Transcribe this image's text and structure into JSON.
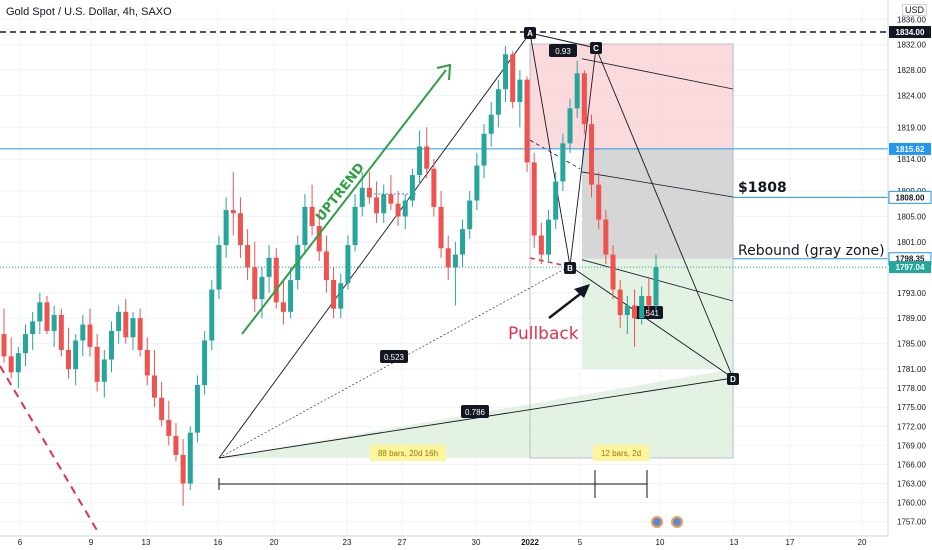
{
  "header": {
    "symbol_title": "Gold Spot / U.S. Dollar, 4h, SAXO",
    "currency": "USD"
  },
  "colors": {
    "up": "#26a69a",
    "down": "#ef5350",
    "hline": "#2196f3",
    "uptrend": "#2ea043",
    "pullback": "#e8304a",
    "gray_zone": "#c8c8c8",
    "red_zone": "#f8cdd2",
    "green_zone": "#d8ecd7"
  },
  "chart_data": {
    "type": "candlestick",
    "title": "Gold Spot / U.S. Dollar, 4h, SAXO",
    "y_axis_ticks": [
      "1757.00",
      "1760.00",
      "1763.00",
      "1766.00",
      "1769.00",
      "1772.00",
      "1775.00",
      "1778.00",
      "1781.00",
      "1785.00",
      "1789.00",
      "1793.00",
      "1797.00",
      "1801.00",
      "1805.00",
      "1809.00",
      "1814.00",
      "1819.00",
      "1824.00",
      "1828.00",
      "1832.00",
      "1836.00"
    ],
    "x_axis_ticks": [
      "6",
      "9",
      "13",
      "16",
      "20",
      "23",
      "27",
      "30",
      "2022",
      "5",
      "10",
      "13",
      "17",
      "20"
    ],
    "price_tags": [
      {
        "label": "1834.00",
        "style": "black"
      },
      {
        "label": "1815.62",
        "style": "blue"
      },
      {
        "label": "1808.00",
        "style": "blue-outline"
      },
      {
        "label": "1798.35",
        "style": "blue-outline"
      },
      {
        "label": "1797.04",
        "style": "green"
      }
    ],
    "horizontal_lines": [
      {
        "price": 1834.0,
        "style": "dashed-black"
      },
      {
        "price": 1815.62,
        "style": "solid-blue"
      },
      {
        "price": 1808.0,
        "style": "solid-blue"
      },
      {
        "price": 1798.35,
        "style": "solid-blue"
      },
      {
        "price": 1797.04,
        "style": "dotted-green"
      }
    ],
    "pattern_points": [
      {
        "label": "A",
        "date": "Jan 3",
        "price": 1831.8
      },
      {
        "label": "B",
        "date": "Jan 5",
        "price": 1797.5
      },
      {
        "label": "C",
        "date": "Jan 6",
        "price": 1829.5
      },
      {
        "label": "D",
        "date": "Jan 13",
        "price": 1781.0
      }
    ],
    "ratios": [
      "0.93",
      "0.523",
      "0.786",
      "1.541"
    ],
    "range_labels": [
      "88 bars, 20d 16h",
      "12 bars, 2d"
    ],
    "annotations": {
      "uptrend": "UPTREND",
      "pullback": "Pullback",
      "level": "$1808",
      "rebound": "Rebound (gray zone)"
    },
    "ohlc": [
      [
        1786.5,
        1790.5,
        1782.0,
        1783.0
      ],
      [
        1783.0,
        1786.0,
        1779.5,
        1780.5
      ],
      [
        1780.5,
        1784.5,
        1778.0,
        1783.5
      ],
      [
        1783.5,
        1788.0,
        1781.5,
        1786.5
      ],
      [
        1786.5,
        1790.0,
        1784.0,
        1788.5
      ],
      [
        1788.5,
        1793.0,
        1786.5,
        1791.5
      ],
      [
        1791.5,
        1792.5,
        1786.5,
        1787.0
      ],
      [
        1787.0,
        1791.0,
        1784.5,
        1789.5
      ],
      [
        1789.5,
        1790.5,
        1783.0,
        1784.0
      ],
      [
        1784.0,
        1787.5,
        1779.5,
        1781.0
      ],
      [
        1781.0,
        1786.5,
        1778.5,
        1785.5
      ],
      [
        1785.5,
        1789.5,
        1783.0,
        1788.0
      ],
      [
        1788.0,
        1790.5,
        1783.0,
        1784.5
      ],
      [
        1784.5,
        1786.5,
        1777.5,
        1779.0
      ],
      [
        1779.0,
        1784.0,
        1776.5,
        1782.5
      ],
      [
        1782.5,
        1788.5,
        1780.5,
        1787.0
      ],
      [
        1787.0,
        1791.0,
        1785.0,
        1790.0
      ],
      [
        1790.0,
        1792.0,
        1785.0,
        1786.0
      ],
      [
        1786.0,
        1790.0,
        1784.0,
        1789.0
      ],
      [
        1789.0,
        1790.5,
        1783.0,
        1784.0
      ],
      [
        1784.0,
        1786.0,
        1778.5,
        1780.0
      ],
      [
        1780.0,
        1784.0,
        1775.0,
        1776.5
      ],
      [
        1776.5,
        1779.0,
        1772.0,
        1773.0
      ],
      [
        1773.0,
        1776.0,
        1769.0,
        1770.5
      ],
      [
        1770.5,
        1772.5,
        1766.5,
        1767.5
      ],
      [
        1767.5,
        1770.0,
        1759.5,
        1763.0
      ],
      [
        1763.0,
        1772.0,
        1762.0,
        1771.0
      ],
      [
        1771.0,
        1780.0,
        1769.5,
        1778.5
      ],
      [
        1778.5,
        1787.0,
        1777.0,
        1785.5
      ],
      [
        1785.5,
        1795.0,
        1784.0,
        1793.5
      ],
      [
        1793.5,
        1802.0,
        1792.0,
        1800.5
      ],
      [
        1800.5,
        1808.0,
        1798.5,
        1806.0
      ],
      [
        1806.0,
        1812.0,
        1802.0,
        1805.5
      ],
      [
        1805.5,
        1808.0,
        1798.5,
        1800.5
      ],
      [
        1800.5,
        1803.0,
        1795.0,
        1797.0
      ],
      [
        1797.0,
        1801.0,
        1790.0,
        1792.0
      ],
      [
        1792.0,
        1797.0,
        1789.0,
        1795.5
      ],
      [
        1795.5,
        1800.5,
        1793.0,
        1798.5
      ],
      [
        1798.5,
        1800.0,
        1790.5,
        1791.5
      ],
      [
        1791.5,
        1795.0,
        1788.0,
        1790.0
      ],
      [
        1790.0,
        1797.0,
        1789.0,
        1795.0
      ],
      [
        1795.0,
        1802.0,
        1793.5,
        1800.5
      ],
      [
        1800.5,
        1808.5,
        1799.0,
        1806.5
      ],
      [
        1806.5,
        1810.0,
        1802.0,
        1803.5
      ],
      [
        1803.5,
        1806.0,
        1798.0,
        1799.5
      ],
      [
        1799.5,
        1802.0,
        1793.0,
        1795.0
      ],
      [
        1795.0,
        1797.0,
        1789.0,
        1790.5
      ],
      [
        1790.5,
        1796.0,
        1789.0,
        1794.5
      ],
      [
        1794.5,
        1802.0,
        1793.5,
        1800.5
      ],
      [
        1800.5,
        1808.5,
        1799.5,
        1806.5
      ],
      [
        1806.5,
        1812.0,
        1805.0,
        1809.5
      ],
      [
        1809.5,
        1812.0,
        1807.0,
        1808.0
      ],
      [
        1808.0,
        1810.5,
        1804.0,
        1805.5
      ],
      [
        1805.5,
        1810.0,
        1804.0,
        1808.5
      ],
      [
        1808.5,
        1811.5,
        1806.0,
        1807.0
      ],
      [
        1807.0,
        1809.0,
        1803.5,
        1805.0
      ],
      [
        1805.0,
        1808.5,
        1803.0,
        1807.5
      ],
      [
        1807.5,
        1812.5,
        1806.5,
        1811.5
      ],
      [
        1811.5,
        1818.5,
        1810.0,
        1816.0
      ],
      [
        1816.0,
        1819.0,
        1811.0,
        1812.5
      ],
      [
        1812.5,
        1814.0,
        1805.0,
        1806.5
      ],
      [
        1806.5,
        1809.0,
        1798.5,
        1800.0
      ],
      [
        1800.0,
        1802.0,
        1795.0,
        1797.0
      ],
      [
        1797.0,
        1801.0,
        1791.0,
        1799.0
      ],
      [
        1799.0,
        1804.5,
        1797.0,
        1803.0
      ],
      [
        1803.0,
        1809.0,
        1801.5,
        1807.5
      ],
      [
        1807.5,
        1815.0,
        1806.0,
        1813.0
      ],
      [
        1813.0,
        1819.5,
        1811.0,
        1818.0
      ],
      [
        1818.0,
        1823.0,
        1816.0,
        1821.0
      ],
      [
        1821.0,
        1826.5,
        1819.0,
        1825.0
      ],
      [
        1825.0,
        1831.8,
        1823.0,
        1830.5
      ],
      [
        1830.5,
        1831.0,
        1822.0,
        1823.0
      ],
      [
        1823.0,
        1828.0,
        1819.0,
        1826.5
      ],
      [
        1826.5,
        1827.0,
        1812.0,
        1813.5
      ],
      [
        1813.5,
        1815.0,
        1800.0,
        1802.0
      ],
      [
        1802.0,
        1804.0,
        1797.5,
        1799.0
      ],
      [
        1799.0,
        1806.0,
        1798.0,
        1804.5
      ],
      [
        1804.5,
        1812.0,
        1803.0,
        1810.5
      ],
      [
        1810.5,
        1818.0,
        1809.0,
        1816.5
      ],
      [
        1816.5,
        1823.5,
        1815.0,
        1822.0
      ],
      [
        1822.0,
        1829.5,
        1820.5,
        1827.5
      ],
      [
        1827.5,
        1828.0,
        1818.0,
        1819.5
      ],
      [
        1819.5,
        1821.0,
        1808.0,
        1810.0
      ],
      [
        1810.0,
        1812.0,
        1803.0,
        1804.5
      ],
      [
        1804.5,
        1806.0,
        1797.5,
        1799.0
      ],
      [
        1799.0,
        1800.5,
        1792.0,
        1793.5
      ],
      [
        1793.5,
        1795.0,
        1787.5,
        1789.5
      ],
      [
        1789.5,
        1792.5,
        1786.5,
        1791.0
      ],
      [
        1791.0,
        1793.5,
        1784.5,
        1789.0
      ],
      [
        1789.0,
        1794.0,
        1788.0,
        1792.5
      ],
      [
        1792.5,
        1795.5,
        1789.5,
        1791.0
      ],
      [
        1791.0,
        1799.0,
        1790.0,
        1797.0
      ]
    ]
  }
}
